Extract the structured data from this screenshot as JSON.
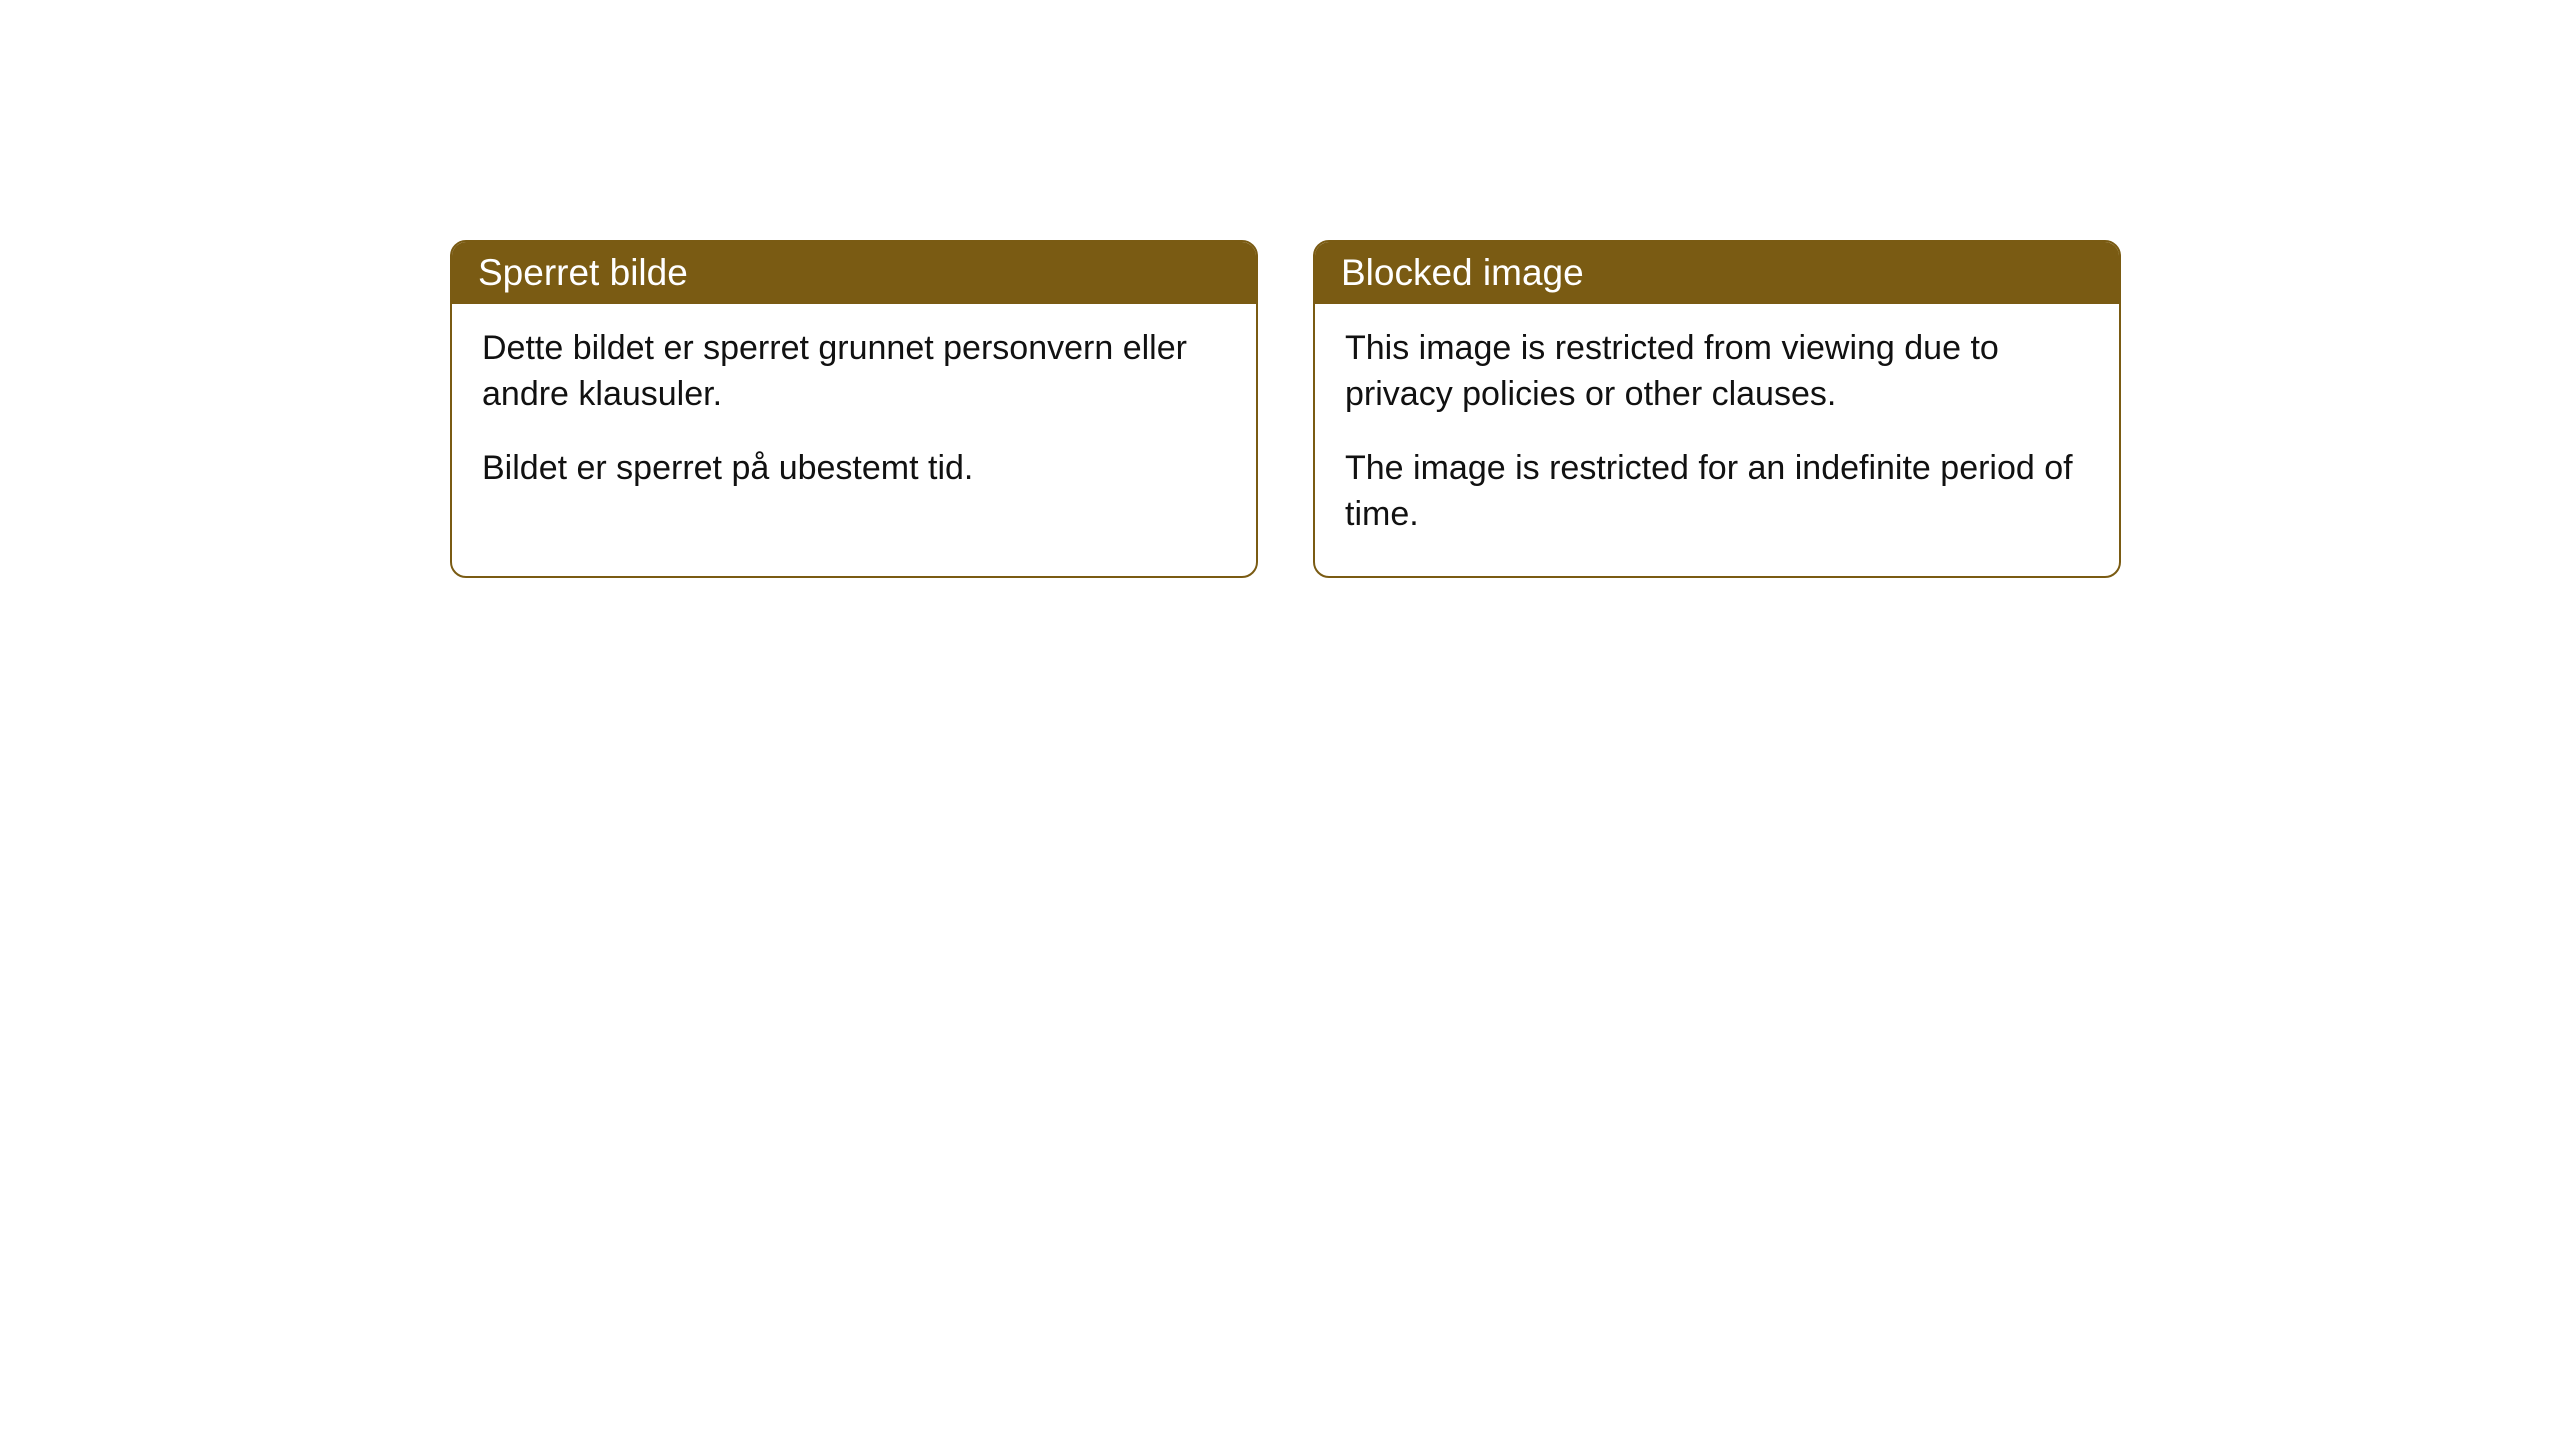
{
  "cards": [
    {
      "title": "Sperret bilde",
      "paragraph1": "Dette bildet er sperret grunnet personvern eller andre klausuler.",
      "paragraph2": "Bildet er sperret på ubestemt tid."
    },
    {
      "title": "Blocked image",
      "paragraph1": "This image is restricted from viewing due to privacy policies or other clauses.",
      "paragraph2": "The image is restricted for an indefinite period of time."
    }
  ],
  "styling": {
    "header_background": "#7a5b13",
    "header_text_color": "#ffffff",
    "body_text_color": "#111111",
    "card_border_color": "#7a5b13",
    "card_background": "#ffffff",
    "page_background": "#ffffff",
    "border_radius": 16,
    "header_fontsize": 37,
    "body_fontsize": 34
  }
}
